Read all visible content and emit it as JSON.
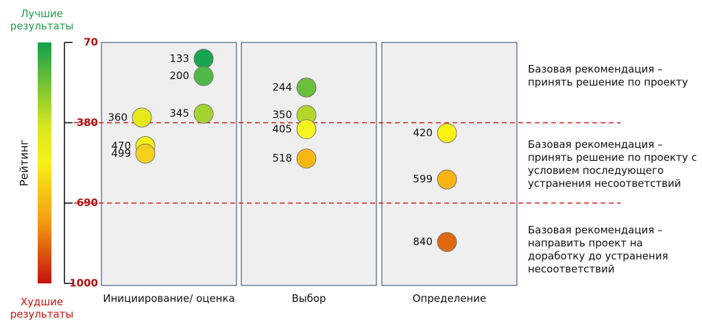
{
  "chart_data": {
    "type": "dot-strip",
    "ylabel": "Рейтинг",
    "top_label": "Лучшие результаты",
    "bottom_label": "Худшие результаты",
    "ylim": [
      70,
      1000
    ],
    "yticks": [
      70,
      380,
      690,
      1000
    ],
    "inverted": true,
    "groups": [
      {
        "name": "Инициирование/ оценка",
        "values": [
          133,
          200,
          345,
          360,
          470,
          499
        ],
        "colors": [
          "#17a550",
          "#4fb847",
          "#a4d22e",
          "#e6ea1c",
          "#f6f01a",
          "#f5d01a"
        ]
      },
      {
        "name": "Выбор",
        "values": [
          244,
          350,
          405,
          518
        ],
        "colors": [
          "#6abf3c",
          "#b3d72a",
          "#f8f423",
          "#f7b713"
        ]
      },
      {
        "name": "Определение",
        "values": [
          420,
          599,
          840
        ],
        "colors": [
          "#faf214",
          "#f7b314",
          "#df6810"
        ]
      }
    ],
    "annotations": [
      "Базовая рекомендация – принять решение по проекту",
      "Базовая рекомендация – принять решение по проекту с условием последующего устранения несоответствий",
      "Базовая рекомендация – направить проект на доработку до устранения несоответствий"
    ]
  }
}
